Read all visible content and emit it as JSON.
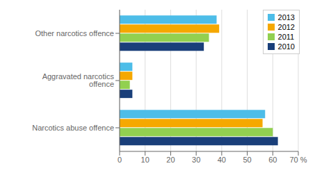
{
  "chart_data": {
    "type": "bar",
    "orientation": "horizontal",
    "categories": [
      "Narcotics abuse offence",
      "Aggravated narcotics offence",
      "Other narcotics offence"
    ],
    "series": [
      {
        "name": "2013",
        "color": "#4dbde8",
        "values": [
          57,
          5,
          38
        ]
      },
      {
        "name": "2012",
        "color": "#f5a800",
        "values": [
          56,
          5,
          39
        ]
      },
      {
        "name": "2011",
        "color": "#92d050",
        "values": [
          60,
          4,
          35
        ]
      },
      {
        "name": "2010",
        "color": "#1a3f7a",
        "values": [
          62,
          5,
          33
        ]
      }
    ],
    "xlim": [
      0,
      70
    ],
    "xticks": [
      0,
      10,
      20,
      30,
      40,
      50,
      60,
      {
        "value": 70,
        "label": "70 %"
      }
    ],
    "grid": true,
    "legend": "upper right"
  }
}
